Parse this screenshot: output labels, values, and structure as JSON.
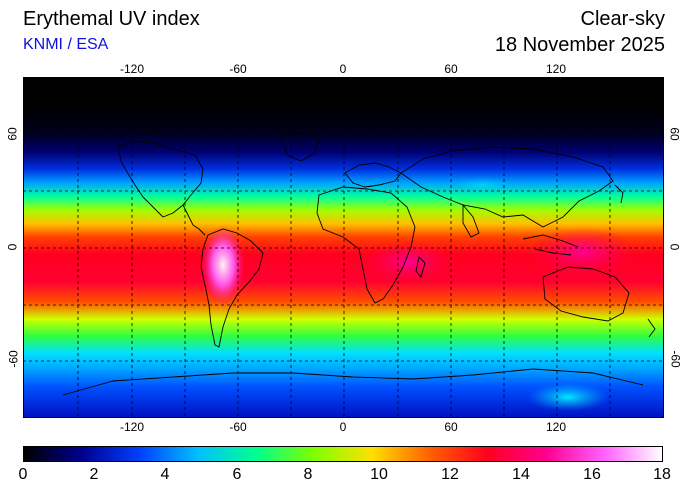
{
  "header": {
    "title": "Erythemal UV index",
    "source": "KNMI / ESA",
    "condition": "Clear-sky",
    "date": "18 November 2025"
  },
  "map": {
    "lon_ticks_top": [
      "-120",
      "-60",
      "0",
      "60",
      "120"
    ],
    "lon_ticks_bottom": [
      "-120",
      "-60",
      "0",
      "60",
      "120"
    ],
    "lat_ticks_left": [
      "60",
      "0",
      "-60"
    ],
    "lat_ticks_right": [
      "60",
      "0",
      "-60"
    ]
  },
  "colorbar": {
    "ticks": [
      "0",
      "2",
      "4",
      "6",
      "8",
      "10",
      "12",
      "14",
      "16",
      "18"
    ],
    "colors": [
      "#000000",
      "#000090",
      "#0040ff",
      "#00c0ff",
      "#00ff90",
      "#80ff00",
      "#ffe000",
      "#ff6000",
      "#ff0020",
      "#ff0090",
      "#ff60ff",
      "#ffffff"
    ]
  }
}
